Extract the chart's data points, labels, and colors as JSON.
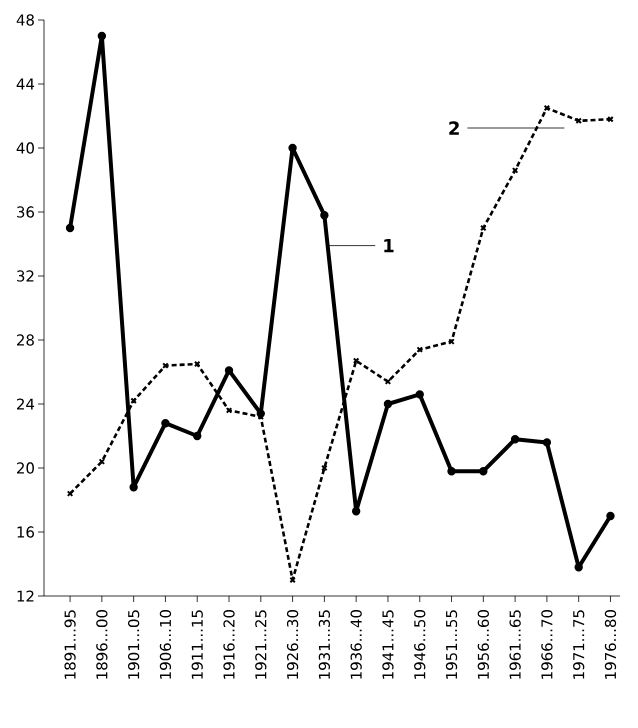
{
  "chart_data": {
    "type": "line",
    "categories": [
      "1891...95",
      "1896...00",
      "1901...05",
      "1906...10",
      "1911...15",
      "1916...20",
      "1921...25",
      "1926...30",
      "1931...35",
      "1936...40",
      "1941...45",
      "1946...50",
      "1951...55",
      "1956...60",
      "1961...65",
      "1966...70",
      "1971...75",
      "1976...80"
    ],
    "series": [
      {
        "name": "1",
        "color": "#000000",
        "marker": "circle",
        "line_style": "solid",
        "values": [
          35,
          47,
          18.8,
          22.8,
          22,
          26.1,
          23.4,
          40,
          35.8,
          17.3,
          24,
          24.6,
          19.8,
          19.8,
          21.8,
          21.6,
          13.8,
          17
        ]
      },
      {
        "name": "2",
        "color": "#000000",
        "marker": "cross",
        "line_style": "dashed",
        "values": [
          18.4,
          20.4,
          24.2,
          26.4,
          26.5,
          23.6,
          23.2,
          13,
          20,
          26.7,
          25.4,
          27.4,
          27.9,
          35,
          38.6,
          42.5,
          41.7,
          41.8
        ]
      }
    ],
    "ylim": [
      12,
      48
    ],
    "yticks": [
      12,
      16,
      20,
      24,
      28,
      32,
      36,
      40,
      44,
      48
    ],
    "grid": false
  }
}
